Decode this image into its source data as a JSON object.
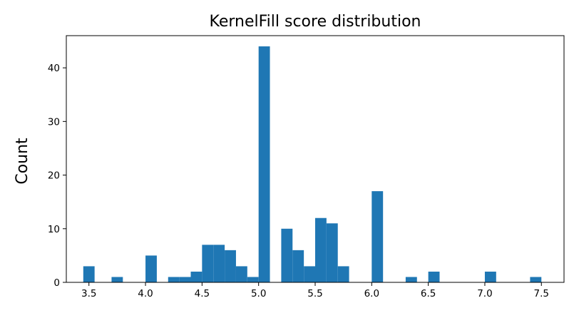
{
  "chart_data": {
    "type": "bar",
    "title": "KernelFill score distribution",
    "xlabel": "",
    "ylabel": "Count",
    "xlim": [
      3.3,
      7.7
    ],
    "ylim": [
      0,
      46
    ],
    "bar_color": "#1f77b4",
    "grid": false,
    "bin_width": 0.1,
    "x_ticks": [
      "3.5",
      "4.0",
      "4.5",
      "5.0",
      "5.5",
      "6.0",
      "6.5",
      "7.0",
      "7.5"
    ],
    "y_ticks": [
      "0",
      "10",
      "20",
      "30",
      "40"
    ],
    "bins": [
      {
        "x": 3.5,
        "count": 3
      },
      {
        "x": 3.75,
        "count": 1
      },
      {
        "x": 4.05,
        "count": 5
      },
      {
        "x": 4.25,
        "count": 1
      },
      {
        "x": 4.35,
        "count": 1
      },
      {
        "x": 4.45,
        "count": 2
      },
      {
        "x": 4.55,
        "count": 7
      },
      {
        "x": 4.65,
        "count": 7
      },
      {
        "x": 4.75,
        "count": 6
      },
      {
        "x": 4.85,
        "count": 3
      },
      {
        "x": 4.95,
        "count": 1
      },
      {
        "x": 5.05,
        "count": 44
      },
      {
        "x": 5.25,
        "count": 10
      },
      {
        "x": 5.35,
        "count": 6
      },
      {
        "x": 5.45,
        "count": 3
      },
      {
        "x": 5.55,
        "count": 12
      },
      {
        "x": 5.65,
        "count": 11
      },
      {
        "x": 5.75,
        "count": 3
      },
      {
        "x": 6.05,
        "count": 17
      },
      {
        "x": 6.35,
        "count": 1
      },
      {
        "x": 6.55,
        "count": 2
      },
      {
        "x": 7.05,
        "count": 2
      },
      {
        "x": 7.45,
        "count": 1
      }
    ]
  }
}
